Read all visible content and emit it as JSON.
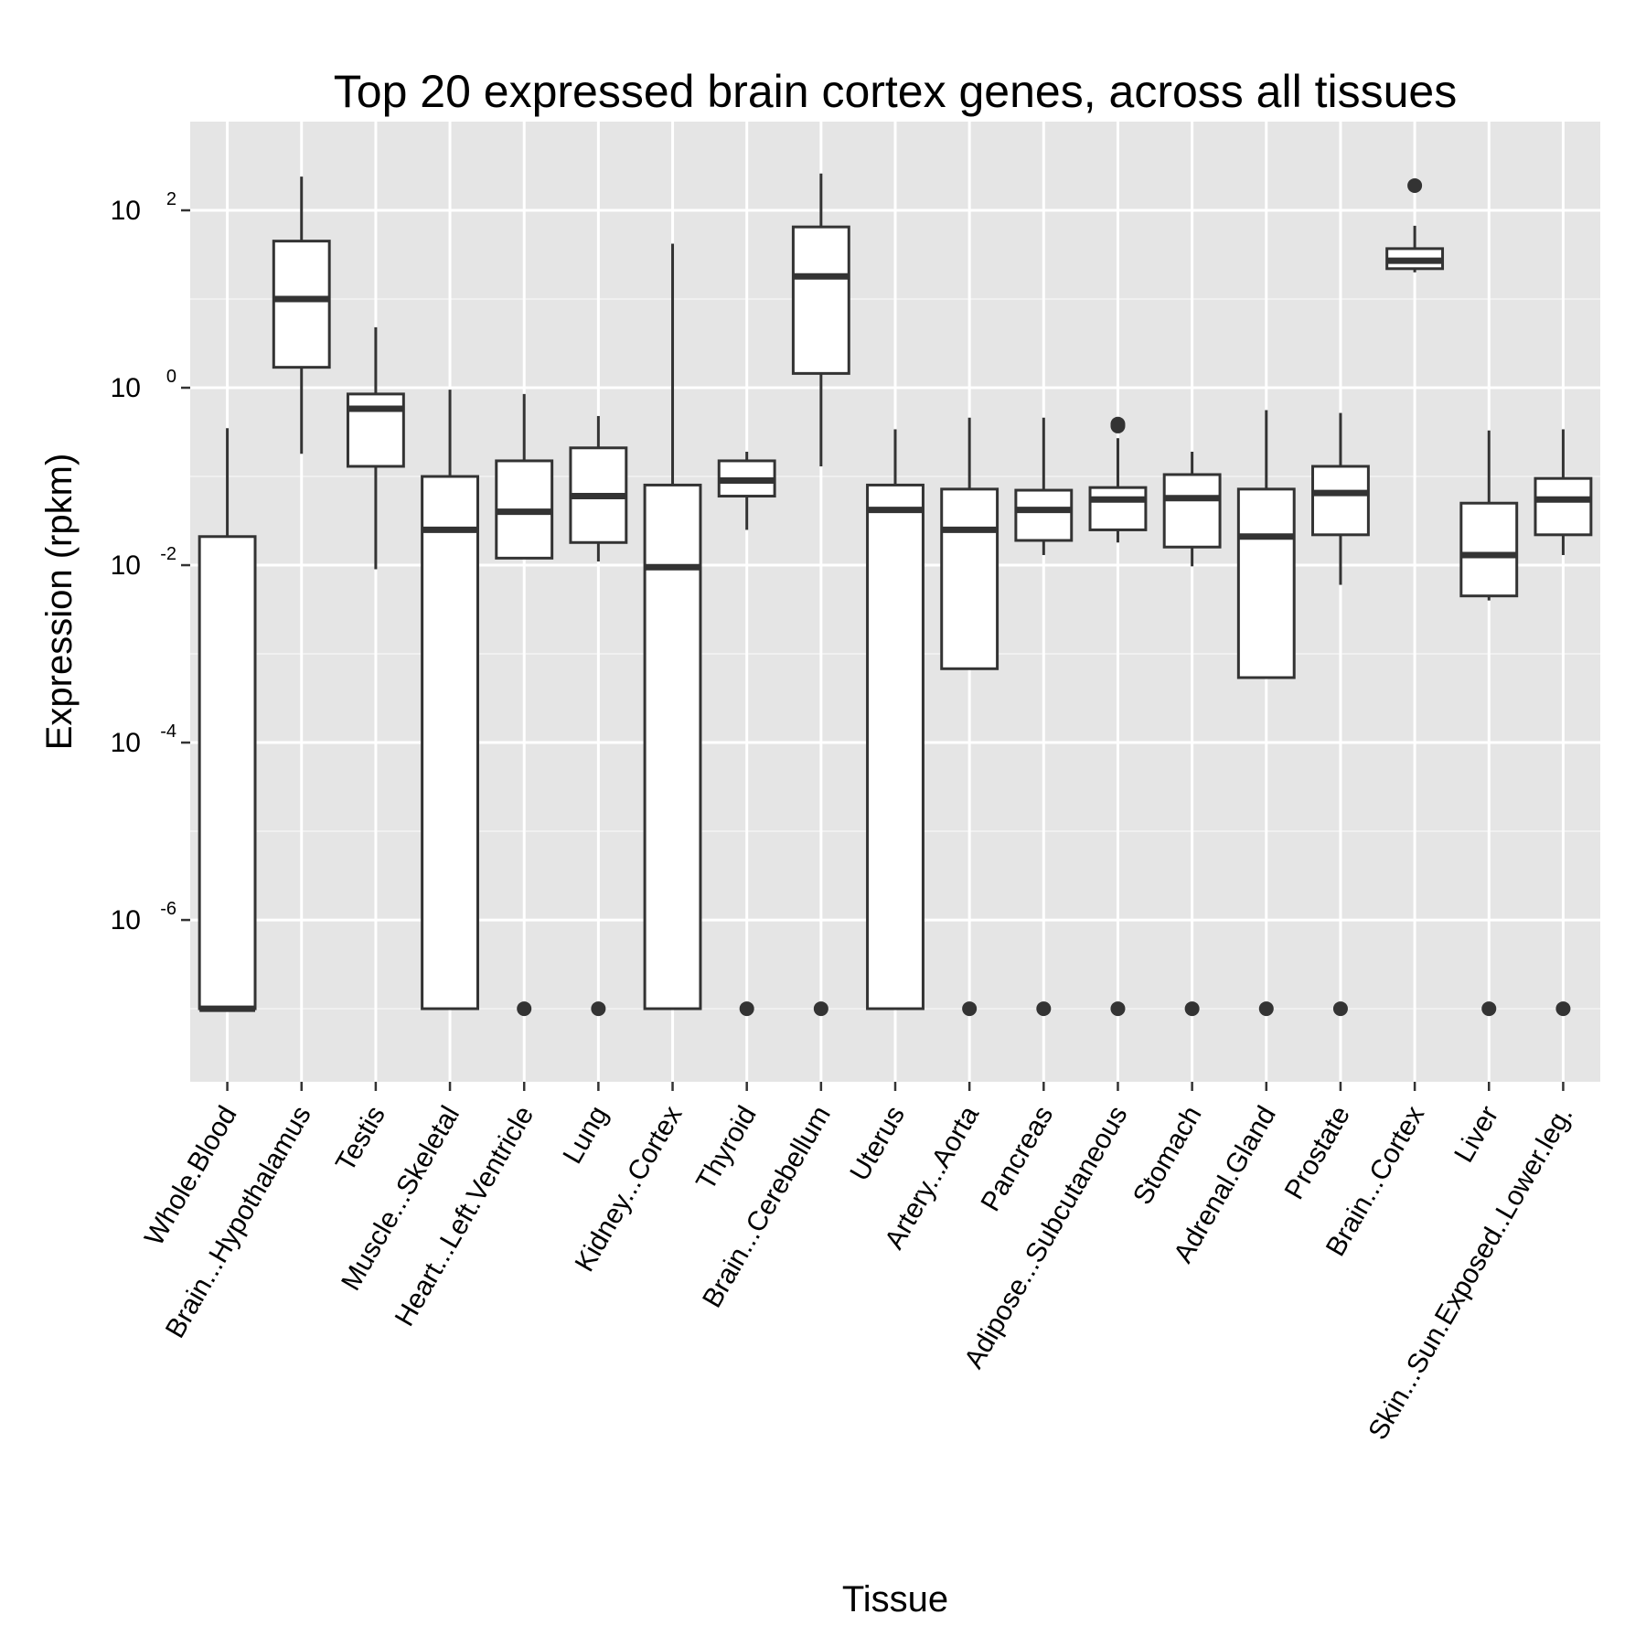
{
  "chart_data": {
    "type": "boxplot",
    "title": "Top 20 expressed brain cortex genes, across all tissues",
    "xlabel": "Tissue",
    "ylabel": "Expression (rpkm)",
    "y_scale": "log10",
    "ylim": [
      1.5e-08,
      1000
    ],
    "y_ticks": [
      {
        "base": "10",
        "exp": "-6",
        "value": 1e-06
      },
      {
        "base": "10",
        "exp": "-4",
        "value": 0.0001
      },
      {
        "base": "10",
        "exp": "-2",
        "value": 0.01
      },
      {
        "base": "10",
        "exp": "0",
        "value": 1
      },
      {
        "base": "10",
        "exp": "2",
        "value": 100
      }
    ],
    "grid": true,
    "colors": {
      "panel": "#e5e5e5",
      "grid": "#ffffff",
      "box_fill": "#ffffff",
      "box_line": "#333333",
      "outlier": "#333333"
    },
    "categories": [
      "Whole.Blood",
      "Brain...Hypothalamus",
      "Testis",
      "Muscle...Skeletal",
      "Heart...Left.Ventricle",
      "Lung",
      "Kidney...Cortex",
      "Thyroid",
      "Brain...Cerebellum",
      "Uterus",
      "Artery...Aorta",
      "Pancreas",
      "Adipose...Subcutaneous",
      "Stomach",
      "Adrenal.Gland",
      "Prostate",
      "Brain...Cortex",
      "Liver",
      "Skin...Sun.Exposed..Lower.leg."
    ],
    "boxes": [
      {
        "whisker_low": 1e-07,
        "q1": 1e-07,
        "median": 1e-07,
        "q3": 0.021,
        "whisker_high": 0.35,
        "outliers": []
      },
      {
        "whisker_low": 0.18,
        "q1": 1.7,
        "median": 10,
        "q3": 45,
        "whisker_high": 240,
        "outliers": []
      },
      {
        "whisker_low": 0.009,
        "q1": 0.13,
        "median": 0.58,
        "q3": 0.85,
        "whisker_high": 4.8,
        "outliers": []
      },
      {
        "whisker_low": 1e-07,
        "q1": 1e-07,
        "median": 0.025,
        "q3": 0.1,
        "whisker_high": 0.95,
        "outliers": []
      },
      {
        "whisker_low": 0.012,
        "q1": 0.012,
        "median": 0.04,
        "q3": 0.15,
        "whisker_high": 0.85,
        "outliers": [
          1e-07
        ]
      },
      {
        "whisker_low": 0.011,
        "q1": 0.018,
        "median": 0.06,
        "q3": 0.21,
        "whisker_high": 0.48,
        "outliers": [
          1e-07
        ]
      },
      {
        "whisker_low": 1e-07,
        "q1": 1e-07,
        "median": 0.0095,
        "q3": 0.08,
        "whisker_high": 42,
        "outliers": []
      },
      {
        "whisker_low": 0.025,
        "q1": 0.06,
        "median": 0.09,
        "q3": 0.15,
        "whisker_high": 0.19,
        "outliers": [
          1e-07
        ]
      },
      {
        "whisker_low": 0.13,
        "q1": 1.45,
        "median": 18,
        "q3": 65,
        "whisker_high": 260,
        "outliers": [
          1e-07
        ]
      },
      {
        "whisker_low": 1e-07,
        "q1": 1e-07,
        "median": 0.042,
        "q3": 0.08,
        "whisker_high": 0.34,
        "outliers": []
      },
      {
        "whisker_low": 0.00068,
        "q1": 0.00068,
        "median": 0.025,
        "q3": 0.072,
        "whisker_high": 0.46,
        "outliers": [
          1e-07
        ]
      },
      {
        "whisker_low": 0.013,
        "q1": 0.019,
        "median": 0.042,
        "q3": 0.07,
        "whisker_high": 0.46,
        "outliers": [
          1e-07
        ]
      },
      {
        "whisker_low": 0.018,
        "q1": 0.025,
        "median": 0.055,
        "q3": 0.075,
        "whisker_high": 0.27,
        "outliers": [
          0.37,
          0.39,
          1e-07
        ]
      },
      {
        "whisker_low": 0.0097,
        "q1": 0.016,
        "median": 0.057,
        "q3": 0.105,
        "whisker_high": 0.19,
        "outliers": [
          1e-07
        ]
      },
      {
        "whisker_low": 0.00054,
        "q1": 0.00054,
        "median": 0.021,
        "q3": 0.072,
        "whisker_high": 0.56,
        "outliers": [
          1e-07
        ]
      },
      {
        "whisker_low": 0.006,
        "q1": 0.022,
        "median": 0.065,
        "q3": 0.13,
        "whisker_high": 0.52,
        "outliers": [
          1e-07
        ]
      },
      {
        "whisker_low": 20,
        "q1": 22,
        "median": 27,
        "q3": 37,
        "whisker_high": 67,
        "outliers": [
          190
        ]
      },
      {
        "whisker_low": 0.004,
        "q1": 0.0045,
        "median": 0.013,
        "q3": 0.05,
        "whisker_high": 0.33,
        "outliers": [
          1e-07
        ]
      },
      {
        "whisker_low": 0.013,
        "q1": 0.022,
        "median": 0.055,
        "q3": 0.095,
        "whisker_high": 0.34,
        "outliers": [
          1e-07
        ]
      }
    ]
  }
}
